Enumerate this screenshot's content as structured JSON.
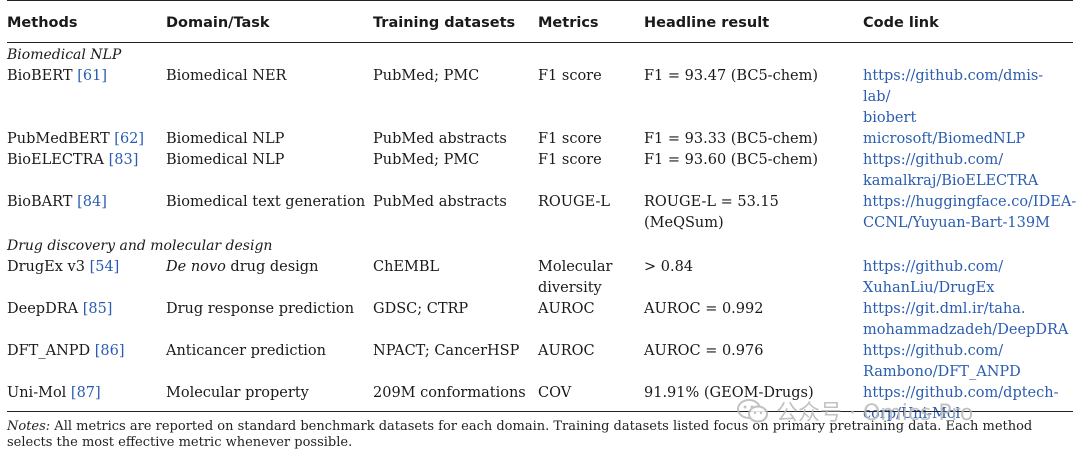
{
  "table": {
    "headers": [
      "Methods",
      "Domain/Task",
      "Training datasets",
      "Metrics",
      "Headline result",
      "Code link"
    ],
    "sections": [
      {
        "title": "Biomedical NLP",
        "rows": [
          {
            "method": "BioBERT",
            "ref": "[61]",
            "task": "Biomedical NER",
            "datasets": "PubMed; PMC",
            "metric": "F1 score",
            "result": "F1 = 93.47 (BC5-chem)",
            "link_lines": [
              "https://github.com/dmis-lab/",
              "biobert"
            ]
          },
          {
            "method": "PubMedBERT",
            "ref": "[62]",
            "task": "Biomedical NLP",
            "datasets": "PubMed abstracts",
            "metric": "F1 score",
            "result": "F1 = 93.33 (BC5-chem)",
            "link_lines": [
              "microsoft/BiomedNLP"
            ]
          },
          {
            "method": "BioELECTRA",
            "ref": "[83]",
            "task": "Biomedical NLP",
            "datasets": "PubMed; PMC",
            "metric": "F1 score",
            "result": "F1 = 93.60 (BC5-chem)",
            "link_lines": [
              "https://github.com/",
              "kamalkraj/BioELECTRA"
            ]
          },
          {
            "method": "BioBART",
            "ref": "[84]",
            "task": "Biomedical text generation",
            "datasets": "PubMed abstracts",
            "metric": "ROUGE-L",
            "result": "ROUGE-L = 53.15 (MeQSum)",
            "link_lines": [
              "https://huggingface.co/IDEA-",
              "CCNL/Yuyuan-Bart-139M"
            ]
          }
        ]
      },
      {
        "title": "Drug discovery and molecular design",
        "rows": [
          {
            "method": "DrugEx v3",
            "ref": "[54]",
            "task_italic": "De novo",
            "task": " drug design",
            "datasets": "ChEMBL",
            "metric": "Molecular diversity",
            "result": "> 0.84",
            "link_lines": [
              "https://github.com/",
              "XuhanLiu/DrugEx"
            ]
          },
          {
            "method": "DeepDRA",
            "ref": "[85]",
            "task": "Drug response prediction",
            "datasets": "GDSC; CTRP",
            "metric": "AUROC",
            "result": "AUROC = 0.992",
            "link_lines": [
              "https://git.dml.ir/taha.",
              "mohammadzadeh/DeepDRA"
            ]
          },
          {
            "method": "DFT_ANPD",
            "ref": "[86]",
            "task": "Anticancer prediction",
            "datasets": "NPACT; CancerHSP",
            "metric": "AUROC",
            "result": "AUROC = 0.976",
            "link_lines": [
              "https://github.com/",
              "Rambono/DFT_ANPD"
            ]
          },
          {
            "method": "Uni-Mol",
            "ref": "[87]",
            "task": "Molecular property",
            "datasets": "209M conformations",
            "metric": "COV",
            "result": "91.91% (GEOM-Drugs)",
            "link_lines": [
              "https://github.com/dptech-",
              "corp/Uni-Mol"
            ]
          }
        ]
      }
    ]
  },
  "notes": {
    "label": "Notes:",
    "text": " All metrics are reported on standard benchmark datasets for each domain. Training datasets listed focus on primary pretraining data. Each method selects the most effective metric whenever possible."
  },
  "watermark": {
    "text": "公众号 · Omics Pro"
  },
  "colors": {
    "link": "#2a5db0",
    "text": "#1a1a1a"
  }
}
